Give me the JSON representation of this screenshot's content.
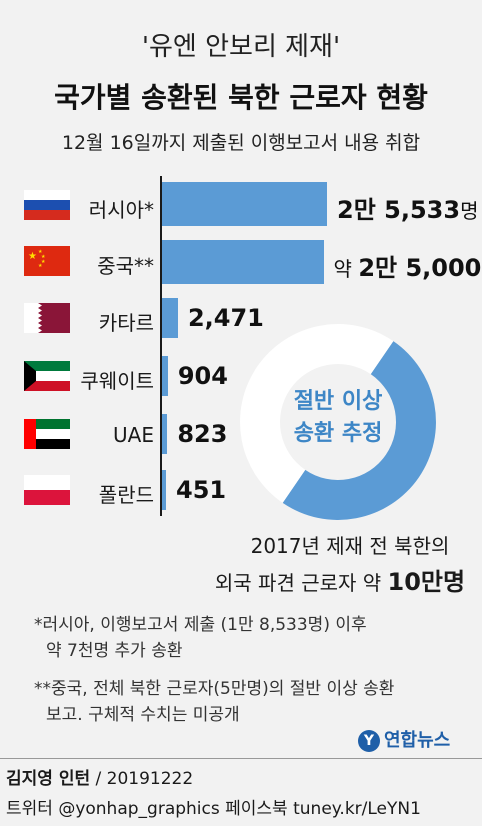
{
  "header": {
    "supertitle": "'유엔 안보리 제재'",
    "title": "국가별 송환된 북한 근로자 현황",
    "subtitle": "12월 16일까지 제출된 이행보고서 내용 취합"
  },
  "chart_data": [
    {
      "type": "bar",
      "orientation": "horizontal",
      "categories": [
        "러시아*",
        "중국**",
        "카타르",
        "쿠웨이트",
        "UAE",
        "폴란드"
      ],
      "values": [
        25533,
        25000,
        2471,
        904,
        823,
        451
      ],
      "value_labels": [
        {
          "prefix": "",
          "number": "2만 5,533",
          "unit": "명"
        },
        {
          "prefix": "약 ",
          "number": "2만 5,000",
          "unit": ""
        },
        {
          "prefix": "",
          "number": "2,471",
          "unit": ""
        },
        {
          "prefix": "",
          "number": "904",
          "unit": ""
        },
        {
          "prefix": "",
          "number": "823",
          "unit": ""
        },
        {
          "prefix": "",
          "number": "451",
          "unit": ""
        }
      ],
      "flags": [
        "russia-flag",
        "china-flag",
        "qatar-flag",
        "kuwait-flag",
        "uae-flag",
        "poland-flag"
      ],
      "colors": {
        "bar": "#5b9bd5"
      }
    },
    {
      "type": "pie",
      "style": "donut",
      "slices": [
        {
          "label": "절반 이상 송환 추정",
          "value": 0.5,
          "color": "#5b9bd5"
        },
        {
          "label": "",
          "value": 0.5,
          "color": "#ffffff"
        }
      ],
      "center_text": [
        "절반 이상",
        "송환 추정"
      ],
      "caption_line1": "2017년 제재 전 북한의",
      "caption_line2_prefix": "외국 파견 근로자 약 ",
      "caption_line2_emphasis": "10만명"
    }
  ],
  "notes": [
    {
      "line1": "*러시아, 이행보고서 제출 (1만 8,533명) 이후",
      "line2": "약 7천명 추가 송환"
    },
    {
      "line1": "**중국, 전체  북한 근로자(5만명)의 절반 이상 송환",
      "line2": "보고. 구체적 수치는 미공개"
    }
  ],
  "logo": {
    "mark": "Y",
    "text": "연합뉴스"
  },
  "credit": {
    "author": "김지영 인턴",
    "date": " / 20191222"
  },
  "social": "트위터 @yonhap_graphics  페이스북 tuney.kr/LeYN1"
}
